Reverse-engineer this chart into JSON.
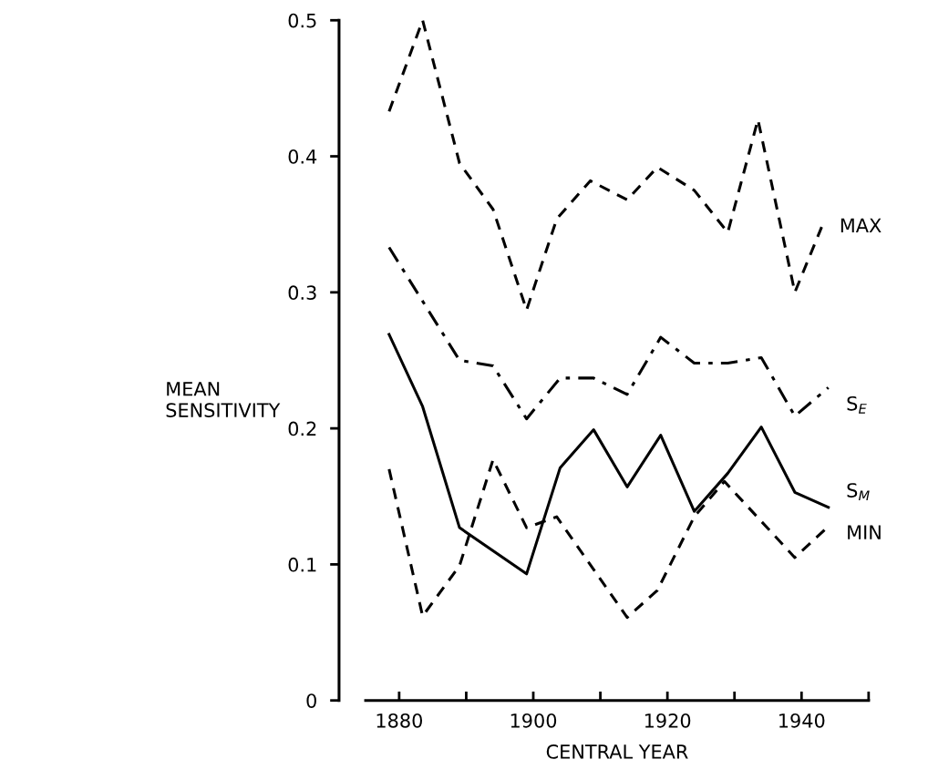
{
  "chart_data": {
    "type": "line",
    "xlabel": "CENTRAL YEAR",
    "ylabel": "MEAN\nSENSITIVITY",
    "xlim": [
      1875,
      1950
    ],
    "xticks": [
      1880,
      {
        "value": 1890,
        "label": null
      },
      1900,
      {
        "value": 1910,
        "label": null
      },
      1920,
      {
        "value": 1930,
        "label": null
      },
      1940,
      {
        "value": 1950,
        "label": null
      }
    ],
    "ylim": [
      0,
      0.5
    ],
    "yticks": [
      0,
      0.1,
      0.2,
      0.3,
      0.4,
      0.5
    ],
    "grid": false,
    "legend": false,
    "marker": "none",
    "series": [
      {
        "name": "MAX",
        "color": "#000000",
        "line_style": "dashed",
        "x": [
          1878.5,
          1883.5,
          1889,
          1894,
          1899,
          1903.5,
          1908.5,
          1914,
          1918.5,
          1924,
          1929,
          1933.5,
          1939,
          1943
        ],
        "values": [
          0.433,
          0.5,
          0.395,
          0.361,
          0.287,
          0.354,
          0.382,
          0.368,
          0.392,
          0.375,
          0.344,
          0.427,
          0.3,
          0.348
        ]
      },
      {
        "name": "S$_{E}$",
        "color": "#000000",
        "line_style": "dashdot",
        "x": [
          1878.5,
          1889,
          1894,
          1899,
          1904,
          1909,
          1914,
          1919,
          1924,
          1929,
          1934,
          1939,
          1944
        ],
        "values": [
          0.333,
          0.25,
          0.246,
          0.207,
          0.237,
          0.237,
          0.225,
          0.267,
          0.248,
          0.248,
          0.252,
          0.209,
          0.23
        ]
      },
      {
        "name": "S$_{M}$",
        "color": "#000000",
        "line_style": "solid",
        "x": [
          1878.5,
          1883.5,
          1889,
          1899,
          1904,
          1909,
          1914,
          1919,
          1924,
          1929,
          1934,
          1939,
          1944
        ],
        "values": [
          0.269,
          0.216,
          0.127,
          0.093,
          0.171,
          0.199,
          0.157,
          0.195,
          0.139,
          0.167,
          0.201,
          0.153,
          0.142
        ]
      },
      {
        "name": "MIN",
        "color": "#000000",
        "line_style": "dashed",
        "x": [
          1878.5,
          1883.5,
          1889,
          1894,
          1899,
          1903.5,
          1914,
          1918.5,
          1924,
          1928.5,
          1939,
          1944
        ],
        "values": [
          0.17,
          0.062,
          0.099,
          0.177,
          0.127,
          0.135,
          0.061,
          0.081,
          0.135,
          0.161,
          0.105,
          0.128
        ]
      }
    ]
  }
}
